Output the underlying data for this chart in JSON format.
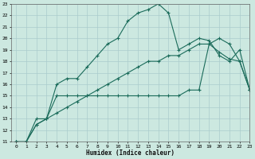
{
  "x_range": [
    -0.5,
    23
  ],
  "y_range": [
    11,
    23
  ],
  "xlabel": "Humidex (Indice chaleur)",
  "background_color": "#cce8e0",
  "grid_color": "#aacccc",
  "line_color": "#1a6b5a",
  "line1_x": [
    0,
    1,
    2,
    3,
    4,
    5,
    6,
    7,
    8,
    9,
    10,
    11,
    12,
    13,
    14,
    15,
    16,
    17,
    18,
    19,
    20,
    21,
    22,
    23
  ],
  "line1_y": [
    11,
    11,
    12.5,
    13,
    16,
    16.5,
    16.5,
    17.5,
    18.5,
    19.5,
    20,
    21.5,
    22.2,
    22.5,
    23,
    22.2,
    19,
    19.5,
    20,
    19.8,
    18.5,
    18,
    19,
    15.5
  ],
  "line2_x": [
    0,
    1,
    2,
    3,
    4,
    5,
    6,
    7,
    8,
    9,
    10,
    11,
    12,
    13,
    14,
    15,
    16,
    17,
    18,
    19,
    20,
    21,
    22,
    23
  ],
  "line2_y": [
    11,
    11,
    13,
    13,
    15,
    15,
    15,
    15,
    15,
    15,
    15,
    15,
    15,
    15,
    15,
    15,
    15,
    15.5,
    15.5,
    19.5,
    20,
    19.5,
    18,
    15.5
  ],
  "line3_x": [
    0,
    1,
    2,
    3,
    4,
    5,
    6,
    7,
    8,
    9,
    10,
    11,
    12,
    13,
    14,
    15,
    16,
    17,
    18,
    19,
    20,
    21,
    22,
    23
  ],
  "line3_y": [
    11,
    11,
    12.5,
    13,
    13.5,
    14,
    14.5,
    15,
    15.5,
    16,
    16.5,
    17,
    17.5,
    18,
    18,
    18.5,
    18.5,
    19,
    19.5,
    19.5,
    18.8,
    18.2,
    18,
    15.5
  ]
}
